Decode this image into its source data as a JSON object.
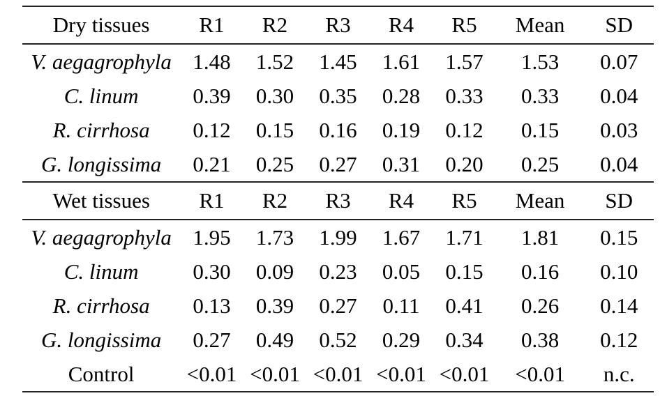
{
  "colors": {
    "background": "#ffffff",
    "text": "#000000",
    "rule": "#222222"
  },
  "table": {
    "sections": [
      {
        "header": {
          "label": "Dry tissues",
          "columns": [
            "R1",
            "R2",
            "R3",
            "R4",
            "R5",
            "Mean",
            "SD"
          ]
        },
        "rows": [
          {
            "species": "V. aegagrophyla",
            "italic": true,
            "values": [
              "1.48",
              "1.52",
              "1.45",
              "1.61",
              "1.57",
              "1.53",
              "0.07"
            ]
          },
          {
            "species": "C. linum",
            "italic": true,
            "values": [
              "0.39",
              "0.30",
              "0.35",
              "0.28",
              "0.33",
              "0.33",
              "0.04"
            ]
          },
          {
            "species": "R. cirrhosa",
            "italic": true,
            "values": [
              "0.12",
              "0.15",
              "0.16",
              "0.19",
              "0.12",
              "0.15",
              "0.03"
            ]
          },
          {
            "species": "G. longissima",
            "italic": true,
            "values": [
              "0.21",
              "0.25",
              "0.27",
              "0.31",
              "0.20",
              "0.25",
              "0.04"
            ]
          }
        ]
      },
      {
        "header": {
          "label": "Wet tissues",
          "columns": [
            "R1",
            "R2",
            "R3",
            "R4",
            "R5",
            "Mean",
            "SD"
          ]
        },
        "rows": [
          {
            "species": "V. aegagrophyla",
            "italic": true,
            "values": [
              "1.95",
              "1.73",
              "1.99",
              "1.67",
              "1.71",
              "1.81",
              "0.15"
            ]
          },
          {
            "species": "C. linum",
            "italic": true,
            "values": [
              "0.30",
              "0.09",
              "0.23",
              "0.05",
              "0.15",
              "0.16",
              "0.10"
            ]
          },
          {
            "species": "R. cirrhosa",
            "italic": true,
            "values": [
              "0.13",
              "0.39",
              "0.27",
              "0.11",
              "0.41",
              "0.26",
              "0.14"
            ]
          },
          {
            "species": "G. longissima",
            "italic": true,
            "values": [
              "0.27",
              "0.49",
              "0.52",
              "0.29",
              "0.34",
              "0.38",
              "0.12"
            ]
          },
          {
            "species": "Control",
            "italic": false,
            "values": [
              "<0.01",
              "<0.01",
              "<0.01",
              "<0.01",
              "<0.01",
              "<0.01",
              "n.c."
            ]
          }
        ]
      }
    ]
  }
}
